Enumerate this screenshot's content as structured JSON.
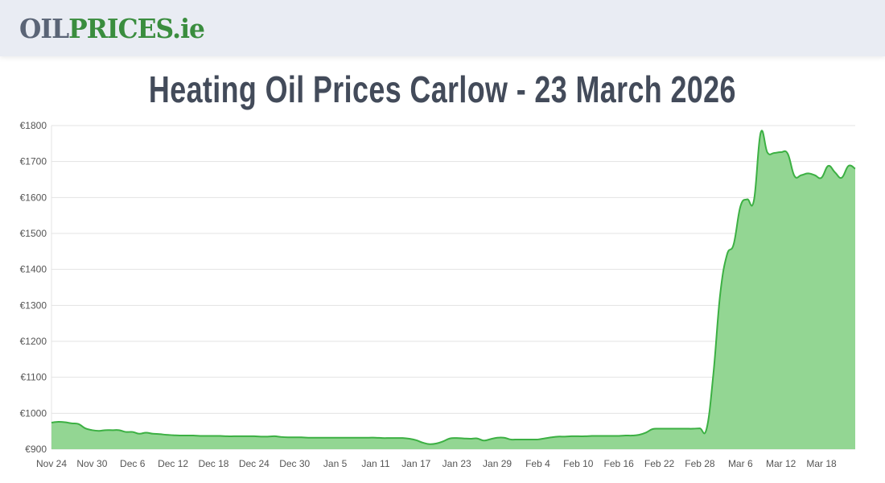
{
  "header": {
    "logo_part1": "OIL",
    "logo_part2": "PRICES.ie"
  },
  "title": "Heating Oil Prices Carlow - 23 March 2026",
  "colors": {
    "line": "#3cb043",
    "fill": "#93d693",
    "grid": "#e3e3e3",
    "title": "#434b5a",
    "logo_grey": "#5a6476",
    "logo_green": "#3a8d3e"
  },
  "chart_data": {
    "type": "area",
    "title": "",
    "xlabel": "",
    "ylabel": "",
    "ylim": [
      900,
      1800
    ],
    "grid": true,
    "yticks": [
      "€900",
      "€1000",
      "€1100",
      "€1200",
      "€1300",
      "€1400",
      "€1500",
      "€1600",
      "€1700",
      "€1800"
    ],
    "xticks": [
      "Nov 24",
      "Nov 30",
      "Dec 6",
      "Dec 12",
      "Dec 18",
      "Dec 24",
      "Dec 30",
      "Jan 5",
      "Jan 11",
      "Jan 17",
      "Jan 23",
      "Jan 29",
      "Feb 4",
      "Feb 10",
      "Feb 16",
      "Feb 22",
      "Feb 28",
      "Mar 6",
      "Mar 12",
      "Mar 18"
    ],
    "x": [
      "Nov 24",
      "Nov 25",
      "Nov 26",
      "Nov 27",
      "Nov 28",
      "Nov 29",
      "Nov 30",
      "Dec 1",
      "Dec 2",
      "Dec 3",
      "Dec 4",
      "Dec 5",
      "Dec 6",
      "Dec 7",
      "Dec 8",
      "Dec 9",
      "Dec 10",
      "Dec 11",
      "Dec 12",
      "Dec 13",
      "Dec 14",
      "Dec 15",
      "Dec 16",
      "Dec 17",
      "Dec 18",
      "Dec 19",
      "Dec 20",
      "Dec 21",
      "Dec 22",
      "Dec 23",
      "Dec 24",
      "Dec 25",
      "Dec 26",
      "Dec 27",
      "Dec 28",
      "Dec 29",
      "Dec 30",
      "Dec 31",
      "Jan 1",
      "Jan 2",
      "Jan 3",
      "Jan 4",
      "Jan 5",
      "Jan 6",
      "Jan 7",
      "Jan 8",
      "Jan 9",
      "Jan 10",
      "Jan 11",
      "Jan 12",
      "Jan 13",
      "Jan 14",
      "Jan 15",
      "Jan 16",
      "Jan 17",
      "Jan 18",
      "Jan 19",
      "Jan 20",
      "Jan 21",
      "Jan 22",
      "Jan 23",
      "Jan 24",
      "Jan 25",
      "Jan 26",
      "Jan 27",
      "Jan 28",
      "Jan 29",
      "Jan 30",
      "Jan 31",
      "Feb 1",
      "Feb 2",
      "Feb 3",
      "Feb 4",
      "Feb 5",
      "Feb 6",
      "Feb 7",
      "Feb 8",
      "Feb 9",
      "Feb 10",
      "Feb 11",
      "Feb 12",
      "Feb 13",
      "Feb 14",
      "Feb 15",
      "Feb 16",
      "Feb 17",
      "Feb 18",
      "Feb 19",
      "Feb 20",
      "Feb 21",
      "Feb 22",
      "Feb 23",
      "Feb 24",
      "Feb 25",
      "Feb 26",
      "Feb 27",
      "Feb 28",
      "Mar 1",
      "Mar 2",
      "Mar 3",
      "Mar 4",
      "Mar 5",
      "Mar 6",
      "Mar 7",
      "Mar 8",
      "Mar 9",
      "Mar 10",
      "Mar 11",
      "Mar 12",
      "Mar 13",
      "Mar 14",
      "Mar 15",
      "Mar 16",
      "Mar 17",
      "Mar 18",
      "Mar 19",
      "Mar 20",
      "Mar 21",
      "Mar 22",
      "Mar 23"
    ],
    "values": [
      974,
      976,
      975,
      972,
      970,
      958,
      953,
      951,
      953,
      953,
      953,
      948,
      948,
      943,
      946,
      943,
      942,
      940,
      939,
      938,
      938,
      938,
      937,
      937,
      937,
      937,
      936,
      936,
      936,
      936,
      936,
      935,
      935,
      936,
      934,
      933,
      933,
      933,
      932,
      932,
      932,
      932,
      932,
      932,
      932,
      932,
      932,
      932,
      932,
      931,
      931,
      931,
      931,
      929,
      925,
      918,
      914,
      916,
      922,
      930,
      931,
      930,
      929,
      930,
      924,
      928,
      932,
      932,
      927,
      927,
      927,
      927,
      927,
      930,
      933,
      935,
      935,
      936,
      936,
      936,
      937,
      937,
      937,
      937,
      937,
      938,
      938,
      940,
      946,
      956,
      957,
      957,
      957,
      957,
      957,
      957,
      958,
      957,
      1110,
      1330,
      1440,
      1470,
      1575,
      1595,
      1592,
      1780,
      1725,
      1724,
      1726,
      1722,
      1660,
      1662,
      1667,
      1662,
      1655,
      1688,
      1670,
      1655,
      1688,
      1680
    ]
  }
}
